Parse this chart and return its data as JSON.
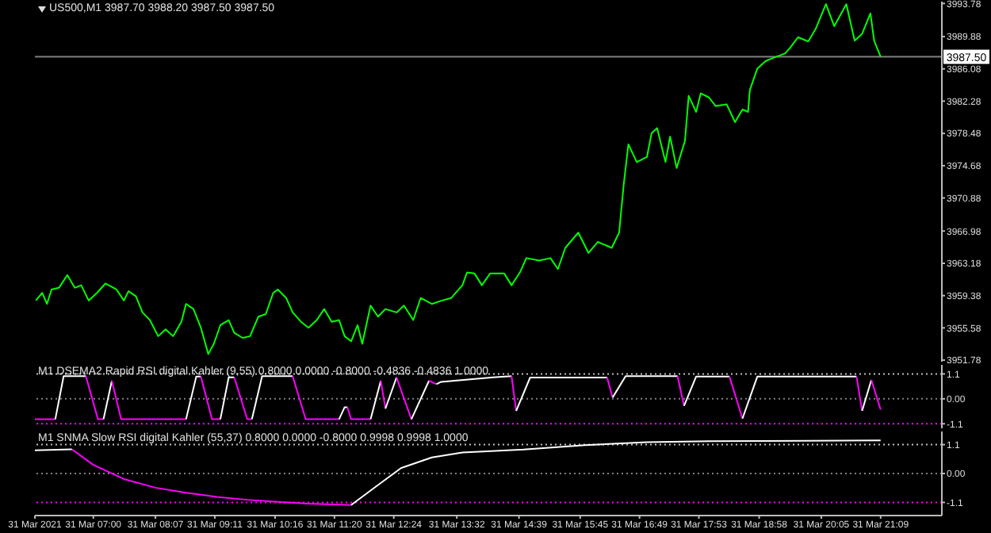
{
  "chart_data": [
    {
      "type": "line",
      "title": "US500,M1  3987.70 3988.20 3987.50 3987.50",
      "xlim": [
        "2021-03-31T05:57",
        "2021-03-31T22:15"
      ],
      "ylim": [
        3951.6,
        3994.0
      ],
      "yticks": [
        3951.78,
        3955.58,
        3959.38,
        3963.18,
        3966.98,
        3970.88,
        3974.68,
        3978.48,
        3982.28,
        3986.08,
        3989.88,
        3993.78
      ],
      "tick_labels": "y",
      "line_style": "solid",
      "ref_lines": [
        {
          "axis": "y",
          "value": 3987.5,
          "label": "3987.50",
          "color": "#808080",
          "line_style": "solid"
        }
      ],
      "series": [
        {
          "color": "#00ff00",
          "x": [
            "2021-03-31T05:58",
            "2021-03-31T06:05",
            "2021-03-31T06:10",
            "2021-03-31T06:15",
            "2021-03-31T06:23",
            "2021-03-31T06:32",
            "2021-03-31T06:40",
            "2021-03-31T06:47",
            "2021-03-31T06:55",
            "2021-03-31T07:04",
            "2021-03-31T07:13",
            "2021-03-31T07:25",
            "2021-03-31T07:33",
            "2021-03-31T07:38",
            "2021-03-31T07:46",
            "2021-03-31T07:53",
            "2021-03-31T08:01",
            "2021-03-31T08:10",
            "2021-03-31T08:18",
            "2021-03-31T08:26",
            "2021-03-31T08:35",
            "2021-03-31T08:40",
            "2021-03-31T08:48",
            "2021-03-31T08:56",
            "2021-03-31T09:04",
            "2021-03-31T09:10",
            "2021-03-31T09:17",
            "2021-03-31T09:26",
            "2021-03-31T09:32",
            "2021-03-31T09:41",
            "2021-03-31T09:49",
            "2021-03-31T09:58",
            "2021-03-31T10:06",
            "2021-03-31T10:14",
            "2021-03-31T10:19",
            "2021-03-31T10:28",
            "2021-03-31T10:35",
            "2021-03-31T10:44",
            "2021-03-31T10:52",
            "2021-03-31T11:01",
            "2021-03-31T11:09",
            "2021-03-31T11:17",
            "2021-03-31T11:25",
            "2021-03-31T11:31",
            "2021-03-31T11:38",
            "2021-03-31T11:45",
            "2021-03-31T11:50",
            "2021-03-31T11:59",
            "2021-03-31T12:07",
            "2021-03-31T12:15",
            "2021-03-31T12:27",
            "2021-03-31T12:35",
            "2021-03-31T12:45",
            "2021-03-31T12:53",
            "2021-03-31T13:05",
            "2021-03-31T13:16",
            "2021-03-31T13:26",
            "2021-03-31T13:38",
            "2021-03-31T13:43",
            "2021-03-31T13:51",
            "2021-03-31T13:59",
            "2021-03-31T14:08",
            "2021-03-31T14:23",
            "2021-03-31T14:31",
            "2021-03-31T14:40",
            "2021-03-31T14:47",
            "2021-03-31T15:01",
            "2021-03-31T15:13",
            "2021-03-31T15:21",
            "2021-03-31T15:29",
            "2021-03-31T15:43",
            "2021-03-31T15:54",
            "2021-03-31T16:04",
            "2021-03-31T16:19",
            "2021-03-31T16:27",
            "2021-03-31T16:32",
            "2021-03-31T16:37",
            "2021-03-31T16:46",
            "2021-03-31T16:57",
            "2021-03-31T17:02",
            "2021-03-31T17:08",
            "2021-03-31T17:17",
            "2021-03-31T17:22",
            "2021-03-31T17:29",
            "2021-03-31T17:38",
            "2021-03-31T17:42",
            "2021-03-31T17:50",
            "2021-03-31T17:55",
            "2021-03-31T18:04",
            "2021-03-31T18:11",
            "2021-03-31T18:23",
            "2021-03-31T18:32",
            "2021-03-31T18:40",
            "2021-03-31T18:46",
            "2021-03-31T18:48",
            "2021-03-31T18:56",
            "2021-03-31T19:05",
            "2021-03-31T19:14",
            "2021-03-31T19:26",
            "2021-03-31T19:31",
            "2021-03-31T19:40",
            "2021-03-31T19:51",
            "2021-03-31T19:59",
            "2021-03-31T20:10",
            "2021-03-31T20:19",
            "2021-03-31T20:32",
            "2021-03-31T20:41",
            "2021-03-31T20:49",
            "2021-03-31T20:58",
            "2021-03-31T21:02",
            "2021-03-31T21:09"
          ],
          "values": [
            3958.8,
            3959.7,
            3958.4,
            3960.1,
            3960.3,
            3961.8,
            3960.3,
            3960.6,
            3958.8,
            3959.7,
            3960.8,
            3960.1,
            3958.8,
            3959.9,
            3959.3,
            3957.4,
            3956.5,
            3954.6,
            3955.4,
            3954.6,
            3956.3,
            3958.4,
            3957.8,
            3955.6,
            3952.5,
            3953.7,
            3955.9,
            3956.5,
            3955.0,
            3954.4,
            3954.6,
            3956.9,
            3957.2,
            3959.7,
            3960.1,
            3959.1,
            3957.4,
            3956.3,
            3955.6,
            3956.5,
            3957.8,
            3956.3,
            3956.5,
            3954.6,
            3954.0,
            3955.9,
            3953.7,
            3958.2,
            3956.9,
            3957.8,
            3957.4,
            3958.2,
            3956.5,
            3959.1,
            3958.4,
            3958.8,
            3959.1,
            3960.6,
            3962.1,
            3962.0,
            3960.6,
            3962.0,
            3962.0,
            3960.6,
            3962.1,
            3963.8,
            3963.5,
            3963.8,
            3962.5,
            3965.0,
            3966.8,
            3964.4,
            3965.7,
            3965.0,
            3966.8,
            3972.5,
            3977.2,
            3975.1,
            3975.7,
            3978.5,
            3979.1,
            3975.1,
            3978.1,
            3974.4,
            3977.6,
            3982.9,
            3981.0,
            3983.2,
            3982.7,
            3981.7,
            3981.9,
            3979.8,
            3981.3,
            3981.0,
            3983.6,
            3986.1,
            3987.0,
            3987.4,
            3987.9,
            3988.5,
            3989.8,
            3989.3,
            3990.8,
            3993.7,
            3991.1,
            3993.7,
            3989.4,
            3990.2,
            3992.6,
            3989.4,
            3987.5
          ]
        }
      ]
    },
    {
      "type": "line",
      "title": "M1 DSEMA2 Rapid RSI digital Kahler (9,55) 0.8000 0.0000 -0.8000 -0.4836 -0.4836 1.0000",
      "xlim": [
        "2021-03-31T05:57",
        "2021-03-31T22:15"
      ],
      "ylim": [
        -1.3,
        1.5
      ],
      "yticks": [
        1.1,
        {
          "value": 0,
          "label": "0.00"
        },
        -1.1
      ],
      "tick_labels": "y",
      "line_style": "solid",
      "ref_lines": [
        {
          "axis": "y",
          "value": 1.1,
          "color": "#c0c0c0",
          "line_style": "dotted"
        },
        {
          "axis": "y",
          "value": 0,
          "color": "#808080",
          "line_style": "dotted"
        },
        {
          "axis": "y",
          "value": -1.1,
          "color": "#ff00ff",
          "line_style": "dotted"
        }
      ],
      "series": [
        {
          "color": "#ff00ff",
          "x": [
            "2021-03-31T05:57",
            "2021-03-31T06:19"
          ],
          "values": [
            -0.9,
            -0.9
          ]
        },
        {
          "color": "#ffffff",
          "x": [
            "2021-03-31T06:19",
            "2021-03-31T06:28",
            "2021-03-31T06:52"
          ],
          "values": [
            -0.9,
            1.0,
            1.0
          ]
        },
        {
          "color": "#ff00ff",
          "x": [
            "2021-03-31T06:52",
            "2021-03-31T07:05",
            "2021-03-31T07:11"
          ],
          "values": [
            1.0,
            -0.9,
            -0.9
          ]
        },
        {
          "color": "#ffffff",
          "x": [
            "2021-03-31T07:11",
            "2021-03-31T07:20"
          ],
          "values": [
            -0.9,
            0.8
          ]
        },
        {
          "color": "#ff00ff",
          "x": [
            "2021-03-31T07:20",
            "2021-03-31T07:30",
            "2021-03-31T08:40"
          ],
          "values": [
            0.8,
            -0.9,
            -0.9
          ]
        },
        {
          "color": "#ffffff",
          "x": [
            "2021-03-31T08:40",
            "2021-03-31T08:51",
            "2021-03-31T08:56"
          ],
          "values": [
            -0.9,
            0.98,
            0.98
          ]
        },
        {
          "color": "#ff00ff",
          "x": [
            "2021-03-31T08:56",
            "2021-03-31T09:08",
            "2021-03-31T09:17"
          ],
          "values": [
            0.98,
            -0.9,
            -0.9
          ]
        },
        {
          "color": "#ffffff",
          "x": [
            "2021-03-31T09:17",
            "2021-03-31T09:26",
            "2021-03-31T09:32"
          ],
          "values": [
            -0.9,
            0.95,
            0.95
          ]
        },
        {
          "color": "#ff00ff",
          "x": [
            "2021-03-31T09:32",
            "2021-03-31T09:46",
            "2021-03-31T09:51"
          ],
          "values": [
            0.95,
            -0.9,
            -0.9
          ]
        },
        {
          "color": "#ffffff",
          "x": [
            "2021-03-31T09:51",
            "2021-03-31T10:02",
            "2021-03-31T10:35"
          ],
          "values": [
            -0.9,
            1.0,
            1.0
          ]
        },
        {
          "color": "#ff00ff",
          "x": [
            "2021-03-31T10:35",
            "2021-03-31T10:49",
            "2021-03-31T11:25"
          ],
          "values": [
            1.0,
            -0.9,
            -0.9
          ]
        },
        {
          "color": "#ffffff",
          "x": [
            "2021-03-31T11:25",
            "2021-03-31T11:31",
            "2021-03-31T11:34"
          ],
          "values": [
            -0.9,
            -0.37,
            -0.37
          ]
        },
        {
          "color": "#ff00ff",
          "x": [
            "2021-03-31T11:34",
            "2021-03-31T11:38",
            "2021-03-31T11:59"
          ],
          "values": [
            -0.37,
            -0.9,
            -0.9
          ]
        },
        {
          "color": "#ffffff",
          "x": [
            "2021-03-31T11:59",
            "2021-03-31T12:10"
          ],
          "values": [
            -0.9,
            0.8
          ]
        },
        {
          "color": "#ff00ff",
          "x": [
            "2021-03-31T12:10",
            "2021-03-31T12:15"
          ],
          "values": [
            0.8,
            -0.43
          ]
        },
        {
          "color": "#ffffff",
          "x": [
            "2021-03-31T12:15",
            "2021-03-31T12:27"
          ],
          "values": [
            -0.43,
            0.95
          ]
        },
        {
          "color": "#ff00ff",
          "x": [
            "2021-03-31T12:27",
            "2021-03-31T12:43"
          ],
          "values": [
            0.95,
            -0.9
          ]
        },
        {
          "color": "#ffffff",
          "x": [
            "2021-03-31T12:43",
            "2021-03-31T13:02"
          ],
          "values": [
            -0.9,
            0.8
          ]
        },
        {
          "color": "#ff00ff",
          "x": [
            "2021-03-31T13:02",
            "2021-03-31T13:10"
          ],
          "values": [
            0.8,
            0.65
          ]
        },
        {
          "color": "#ffffff",
          "x": [
            "2021-03-31T13:10",
            "2021-03-31T13:15",
            "2021-03-31T14:11",
            "2021-03-31T14:31"
          ],
          "values": [
            0.65,
            0.75,
            0.95,
            1.0
          ]
        },
        {
          "color": "#ff00ff",
          "x": [
            "2021-03-31T14:31",
            "2021-03-31T14:36"
          ],
          "values": [
            1.0,
            -0.53
          ]
        },
        {
          "color": "#ffffff",
          "x": [
            "2021-03-31T14:36",
            "2021-03-31T14:51",
            "2021-03-31T16:14"
          ],
          "values": [
            -0.53,
            0.94,
            0.94
          ]
        },
        {
          "color": "#ff00ff",
          "x": [
            "2021-03-31T16:14",
            "2021-03-31T16:20"
          ],
          "values": [
            0.94,
            0.06
          ]
        },
        {
          "color": "#ffffff",
          "x": [
            "2021-03-31T16:20",
            "2021-03-31T16:34",
            "2021-03-31T17:30"
          ],
          "values": [
            0.06,
            1.0,
            1.0
          ]
        },
        {
          "color": "#ff00ff",
          "x": [
            "2021-03-31T17:30",
            "2021-03-31T17:37"
          ],
          "values": [
            1.0,
            -0.31
          ]
        },
        {
          "color": "#ffffff",
          "x": [
            "2021-03-31T17:37",
            "2021-03-31T17:50",
            "2021-03-31T18:26"
          ],
          "values": [
            -0.31,
            0.98,
            0.98
          ]
        },
        {
          "color": "#ff00ff",
          "x": [
            "2021-03-31T18:26",
            "2021-03-31T18:40"
          ],
          "values": [
            0.98,
            -0.87
          ]
        },
        {
          "color": "#ffffff",
          "x": [
            "2021-03-31T18:40",
            "2021-03-31T18:56",
            "2021-03-31T20:43"
          ],
          "values": [
            -0.87,
            0.98,
            0.98
          ]
        },
        {
          "color": "#ff00ff",
          "x": [
            "2021-03-31T20:43",
            "2021-03-31T20:49"
          ],
          "values": [
            0.98,
            -0.53
          ]
        },
        {
          "color": "#ffffff",
          "x": [
            "2021-03-31T20:49",
            "2021-03-31T20:59"
          ],
          "values": [
            -0.53,
            0.83
          ]
        },
        {
          "color": "#ff00ff",
          "x": [
            "2021-03-31T20:59",
            "2021-03-31T21:09"
          ],
          "values": [
            0.83,
            -0.48
          ]
        }
      ]
    },
    {
      "type": "line",
      "title": "M1 SNMA Slow RSI digital Kahler (55,37) 0.8000 0.0000 -0.8000 0.9998 0.9998 1.0000",
      "xlim": [
        "2021-03-31T05:57",
        "2021-03-31T22:15"
      ],
      "ylim": [
        -1.6,
        1.6
      ],
      "yticks": [
        1.1,
        {
          "value": 0,
          "label": "0.00"
        },
        -1.1
      ],
      "line_style": "solid",
      "xticks": [
        {
          "value": "2021-03-31T05:57",
          "label": "31 Mar 2021"
        },
        {
          "value": "2021-03-31T07:00",
          "label": "31 Mar 07:00"
        },
        {
          "value": "2021-03-31T08:07",
          "label": "31 Mar 08:07"
        },
        {
          "value": "2021-03-31T09:11",
          "label": "31 Mar 09:11"
        },
        {
          "value": "2021-03-31T10:16",
          "label": "31 Mar 10:16"
        },
        {
          "value": "2021-03-31T11:20",
          "label": "31 Mar 11:20"
        },
        {
          "value": "2021-03-31T12:24",
          "label": "31 Mar 12:24"
        },
        {
          "value": "2021-03-31T13:32",
          "label": "31 Mar 13:32"
        },
        {
          "value": "2021-03-31T14:39",
          "label": "31 Mar 14:39"
        },
        {
          "value": "2021-03-31T15:45",
          "label": "31 Mar 15:45"
        },
        {
          "value": "2021-03-31T16:49",
          "label": "31 Mar 16:49"
        },
        {
          "value": "2021-03-31T17:53",
          "label": "31 Mar 17:53"
        },
        {
          "value": "2021-03-31T18:58",
          "label": "31 Mar 18:58"
        },
        {
          "value": "2021-03-31T20:05",
          "label": "31 Mar 20:05"
        },
        {
          "value": "2021-03-31T21:09",
          "label": "31 Mar 21:09"
        }
      ],
      "ref_lines": [
        {
          "axis": "y",
          "value": 1.1,
          "color": "#c0c0c0",
          "line_style": "dotted"
        },
        {
          "axis": "y",
          "value": 0,
          "color": "#808080",
          "line_style": "dotted"
        },
        {
          "axis": "y",
          "value": -1.1,
          "color": "#ff00ff",
          "line_style": "dotted"
        }
      ],
      "series": [
        {
          "color": "#ffffff",
          "x": [
            "2021-03-31T05:57",
            "2021-03-31T06:37"
          ],
          "values": [
            0.88,
            0.92
          ]
        },
        {
          "color": "#ff00ff",
          "x": [
            "2021-03-31T06:37",
            "2021-03-31T07:00",
            "2021-03-31T07:33",
            "2021-03-31T08:07",
            "2021-03-31T08:40",
            "2021-03-31T09:13",
            "2021-03-31T09:46",
            "2021-03-31T10:19",
            "2021-03-31T10:52",
            "2021-03-31T11:38"
          ],
          "values": [
            0.92,
            0.33,
            -0.21,
            -0.54,
            -0.73,
            -0.89,
            -1.0,
            -1.08,
            -1.15,
            -1.2
          ]
        },
        {
          "color": "#ffffff",
          "x": [
            "2021-03-31T11:38",
            "2021-03-31T12:05",
            "2021-03-31T12:32",
            "2021-03-31T13:05",
            "2021-03-31T13:38",
            "2021-03-31T14:44",
            "2021-03-31T15:50",
            "2021-03-31T16:57",
            "2021-03-31T18:04",
            "2021-03-31T21:09"
          ],
          "values": [
            -1.2,
            -0.49,
            0.21,
            0.61,
            0.8,
            0.91,
            1.08,
            1.19,
            1.23,
            1.26
          ]
        }
      ]
    }
  ]
}
